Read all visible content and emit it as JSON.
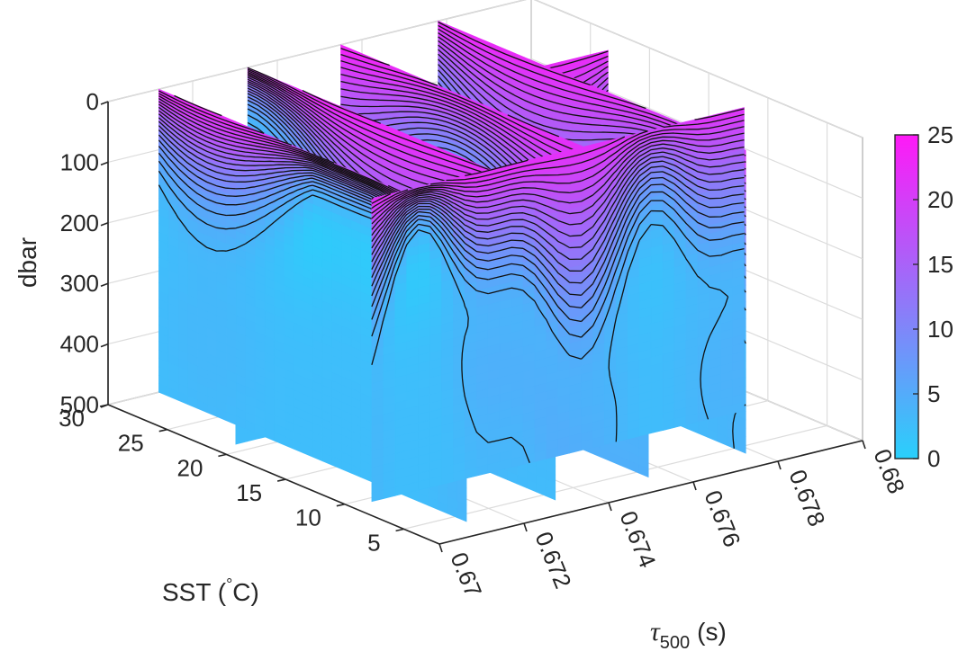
{
  "chart_data": {
    "type": "contour-slices-3d",
    "xlabel": "τ500 (s)",
    "xlabel_base": "τ",
    "xlabel_sub": "500",
    "xlabel_unit": "(s)",
    "ylabel": "SST (°C)",
    "ylabel_pre": "SST (",
    "ylabel_deg": "°",
    "ylabel_post": "C)",
    "zlabel": "dbar",
    "x_ticks": [
      "0.67",
      "0.672",
      "0.674",
      "0.676",
      "0.678",
      "0.68"
    ],
    "x_tick_values": [
      0.67,
      0.672,
      0.674,
      0.676,
      0.678,
      0.68
    ],
    "y_ticks": [
      "5",
      "10",
      "15",
      "20",
      "25",
      "30"
    ],
    "y_tick_values": [
      5,
      10,
      15,
      20,
      25,
      30
    ],
    "z_ticks": [
      "0",
      "100",
      "200",
      "300",
      "400",
      "500"
    ],
    "z_tick_values": [
      0,
      100,
      200,
      300,
      400,
      500
    ],
    "xlim": [
      0.67,
      0.68
    ],
    "ylim": [
      2,
      30
    ],
    "zlim": [
      0,
      500
    ],
    "colorbar": {
      "min": 0,
      "max": 25,
      "ticks": [
        "0",
        "5",
        "10",
        "15",
        "20",
        "25"
      ],
      "tick_values": [
        0,
        5,
        10,
        15,
        20,
        25
      ],
      "colormap": [
        "#29d0fb",
        "#ff19f7"
      ]
    },
    "slices_constant_sst": [
      {
        "sst": 9.5,
        "tau_range": [
          0.6705,
          0.6793
        ]
      },
      {
        "sst": 21.0,
        "tau_range": [
          0.6705,
          0.6793
        ]
      }
    ],
    "slices_constant_tau": [
      {
        "tau": 0.6712,
        "sst_range": [
          4,
          30
        ]
      },
      {
        "tau": 0.6733,
        "sst_range": [
          4,
          30
        ]
      },
      {
        "tau": 0.6755,
        "sst_range": [
          4,
          30
        ]
      },
      {
        "tau": 0.6778,
        "sst_range": [
          4,
          30
        ]
      }
    ],
    "contour_interval": 1
  }
}
